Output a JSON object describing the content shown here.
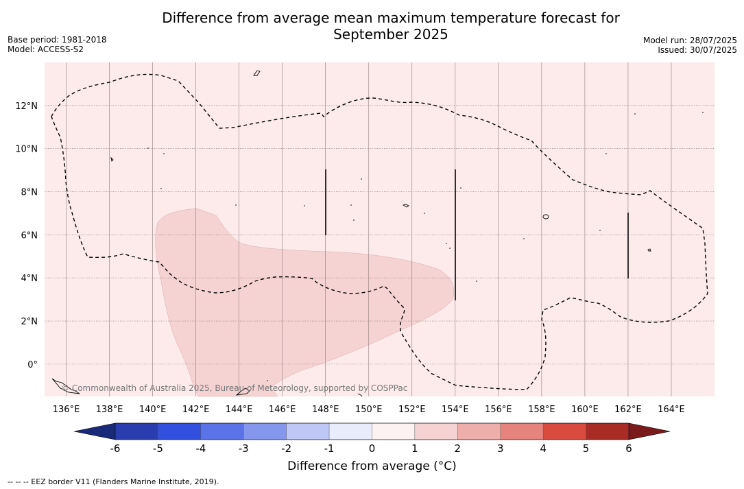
{
  "title": {
    "line1": "Difference from average mean maximum temperature forecast for",
    "line2": "September 2025"
  },
  "meta_left": {
    "base_period": "Base period: 1981-2018",
    "model": "Model: ACCESS-S2"
  },
  "meta_right": {
    "model_run": "Model run: 28/07/2025",
    "issued": "Issued: 30/07/2025"
  },
  "map": {
    "lon_range": [
      135,
      166
    ],
    "lat_range": [
      -1.5,
      14
    ],
    "grid_lons": [
      136,
      138,
      140,
      142,
      144,
      146,
      148,
      150,
      152,
      154,
      156,
      158,
      160,
      162,
      164
    ],
    "lon_labels": [
      "136°E",
      "138°E",
      "140°E",
      "142°E",
      "144°E",
      "146°E",
      "148°E",
      "150°E",
      "152°E",
      "154°E",
      "156°E",
      "158°E",
      "160°E",
      "162°E",
      "164°E"
    ],
    "grid_lats": [
      0,
      2,
      4,
      6,
      8,
      10,
      12
    ],
    "lat_labels": [
      "0°",
      "2°N",
      "4°N",
      "6°N",
      "8°N",
      "10°N",
      "12°N"
    ],
    "background_anomaly_class": "0 to 1",
    "warm_region_anomaly_class": "1 to 2",
    "copyright": "© Commonwealth of Australia 2025, Bureau of Meteorology, supported by COSPPac",
    "colors": {
      "bg": "#fcebea",
      "warm": "#f5d3d2",
      "warm_edge": "#d9aaa8"
    }
  },
  "colorbar": {
    "ticks": [
      "-6",
      "-5",
      "-4",
      "-3",
      "-2",
      "-1",
      "0",
      "1",
      "2",
      "3",
      "4",
      "5",
      "6"
    ],
    "colors": [
      "#2a3daf",
      "#3150e0",
      "#5a73e8",
      "#8497ec",
      "#bfc7f4",
      "#e9ecfb",
      "#fdf2f2",
      "#f5d3d2",
      "#eeafab",
      "#e6837c",
      "#d94a3f",
      "#a82b25"
    ],
    "under_color": "#1a2a7a",
    "over_color": "#7a1a1a",
    "label": "Difference from average (°C)"
  },
  "footnote": "--  --  -- EEZ border V11 (Flanders Marine Institute, 2019)."
}
